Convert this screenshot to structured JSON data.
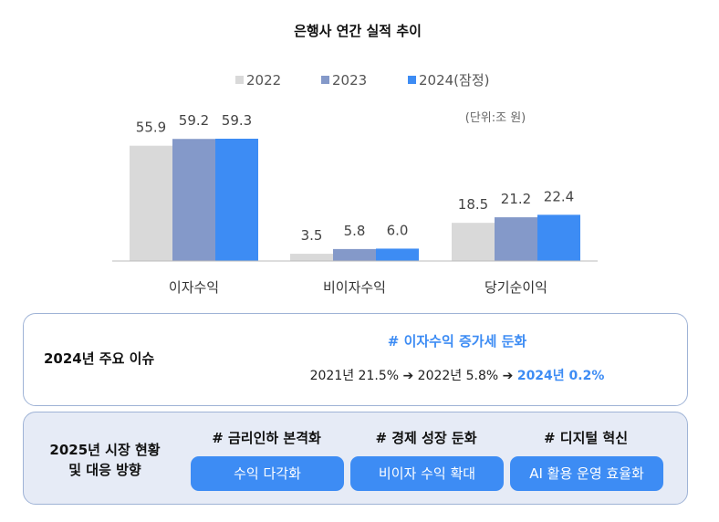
{
  "chart_data": {
    "type": "bar",
    "title": "은행사 연간 실적 추이",
    "unit": "(단위:조 원)",
    "categories": [
      "이자수익",
      "비이자수익",
      "당기순이익"
    ],
    "series": [
      {
        "name": "2022",
        "values": [
          55.9,
          3.5,
          18.5
        ],
        "color": "#d9d9d9"
      },
      {
        "name": "2023",
        "values": [
          59.2,
          5.8,
          21.2
        ],
        "color": "#8499c9"
      },
      {
        "name": "2024(잠정)",
        "values": [
          59.3,
          6.0,
          22.4
        ],
        "color": "#3d8cf4"
      }
    ],
    "value_labels": [
      [
        "55.9",
        "3.5",
        "18.5"
      ],
      [
        "59.2",
        "5.8",
        "21.2"
      ],
      [
        "59.3",
        "6.0",
        "22.4"
      ]
    ],
    "ylim": [
      0,
      60
    ],
    "grid": false,
    "legend_position": "top"
  },
  "issue": {
    "heading": "2024년 주요 이슈",
    "tag": "# 이자수익 증가세 둔화",
    "trend_prefix": "2021년 21.5% ➔ 2022년 5.8% ➔ ",
    "trend_highlight": "2024년 0.2%"
  },
  "outlook": {
    "heading_line1": "2025년 시장 현황",
    "heading_line2": "및 대응 방향",
    "directions": [
      {
        "tag": "# 금리인하 본격화",
        "action": "수익 다각화"
      },
      {
        "tag": "# 경제 성장 둔화",
        "action": "비이자 수익 확대"
      },
      {
        "tag": "# 디지털 혁신",
        "action": "AI 활용 운영 효율화"
      }
    ]
  }
}
